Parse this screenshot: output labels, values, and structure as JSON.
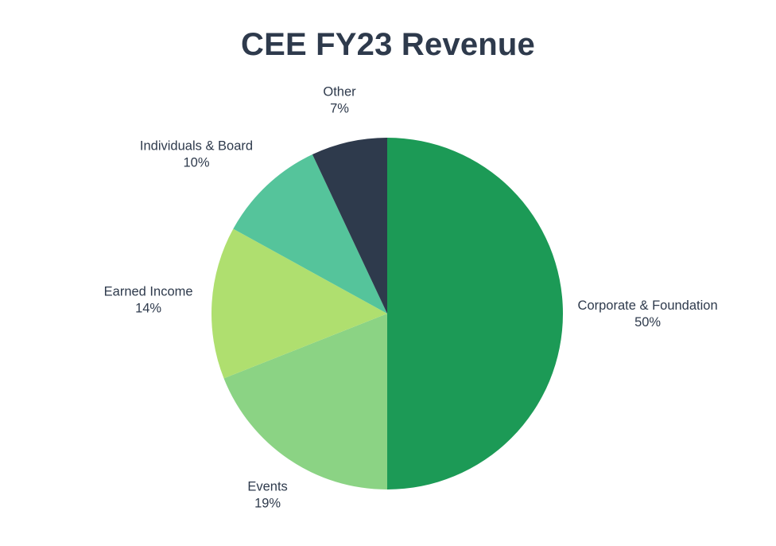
{
  "chart_data": {
    "type": "pie",
    "title": "CEE FY23 Revenue",
    "slices": [
      {
        "label": "Corporate & Foundation",
        "value": 50,
        "value_label": "50%",
        "color": "#1c9a56"
      },
      {
        "label": "Events",
        "value": 19,
        "value_label": "19%",
        "color": "#8bd384"
      },
      {
        "label": "Earned Income",
        "value": 14,
        "value_label": "14%",
        "color": "#afdf6f"
      },
      {
        "label": "Individuals & Board",
        "value": 10,
        "value_label": "10%",
        "color": "#55c49b"
      },
      {
        "label": "Other",
        "value": 7,
        "value_label": "7%",
        "color": "#2e3a4c"
      }
    ],
    "start_angle": "top",
    "direction": "clockwise",
    "legend": "none",
    "labels": "outside"
  }
}
